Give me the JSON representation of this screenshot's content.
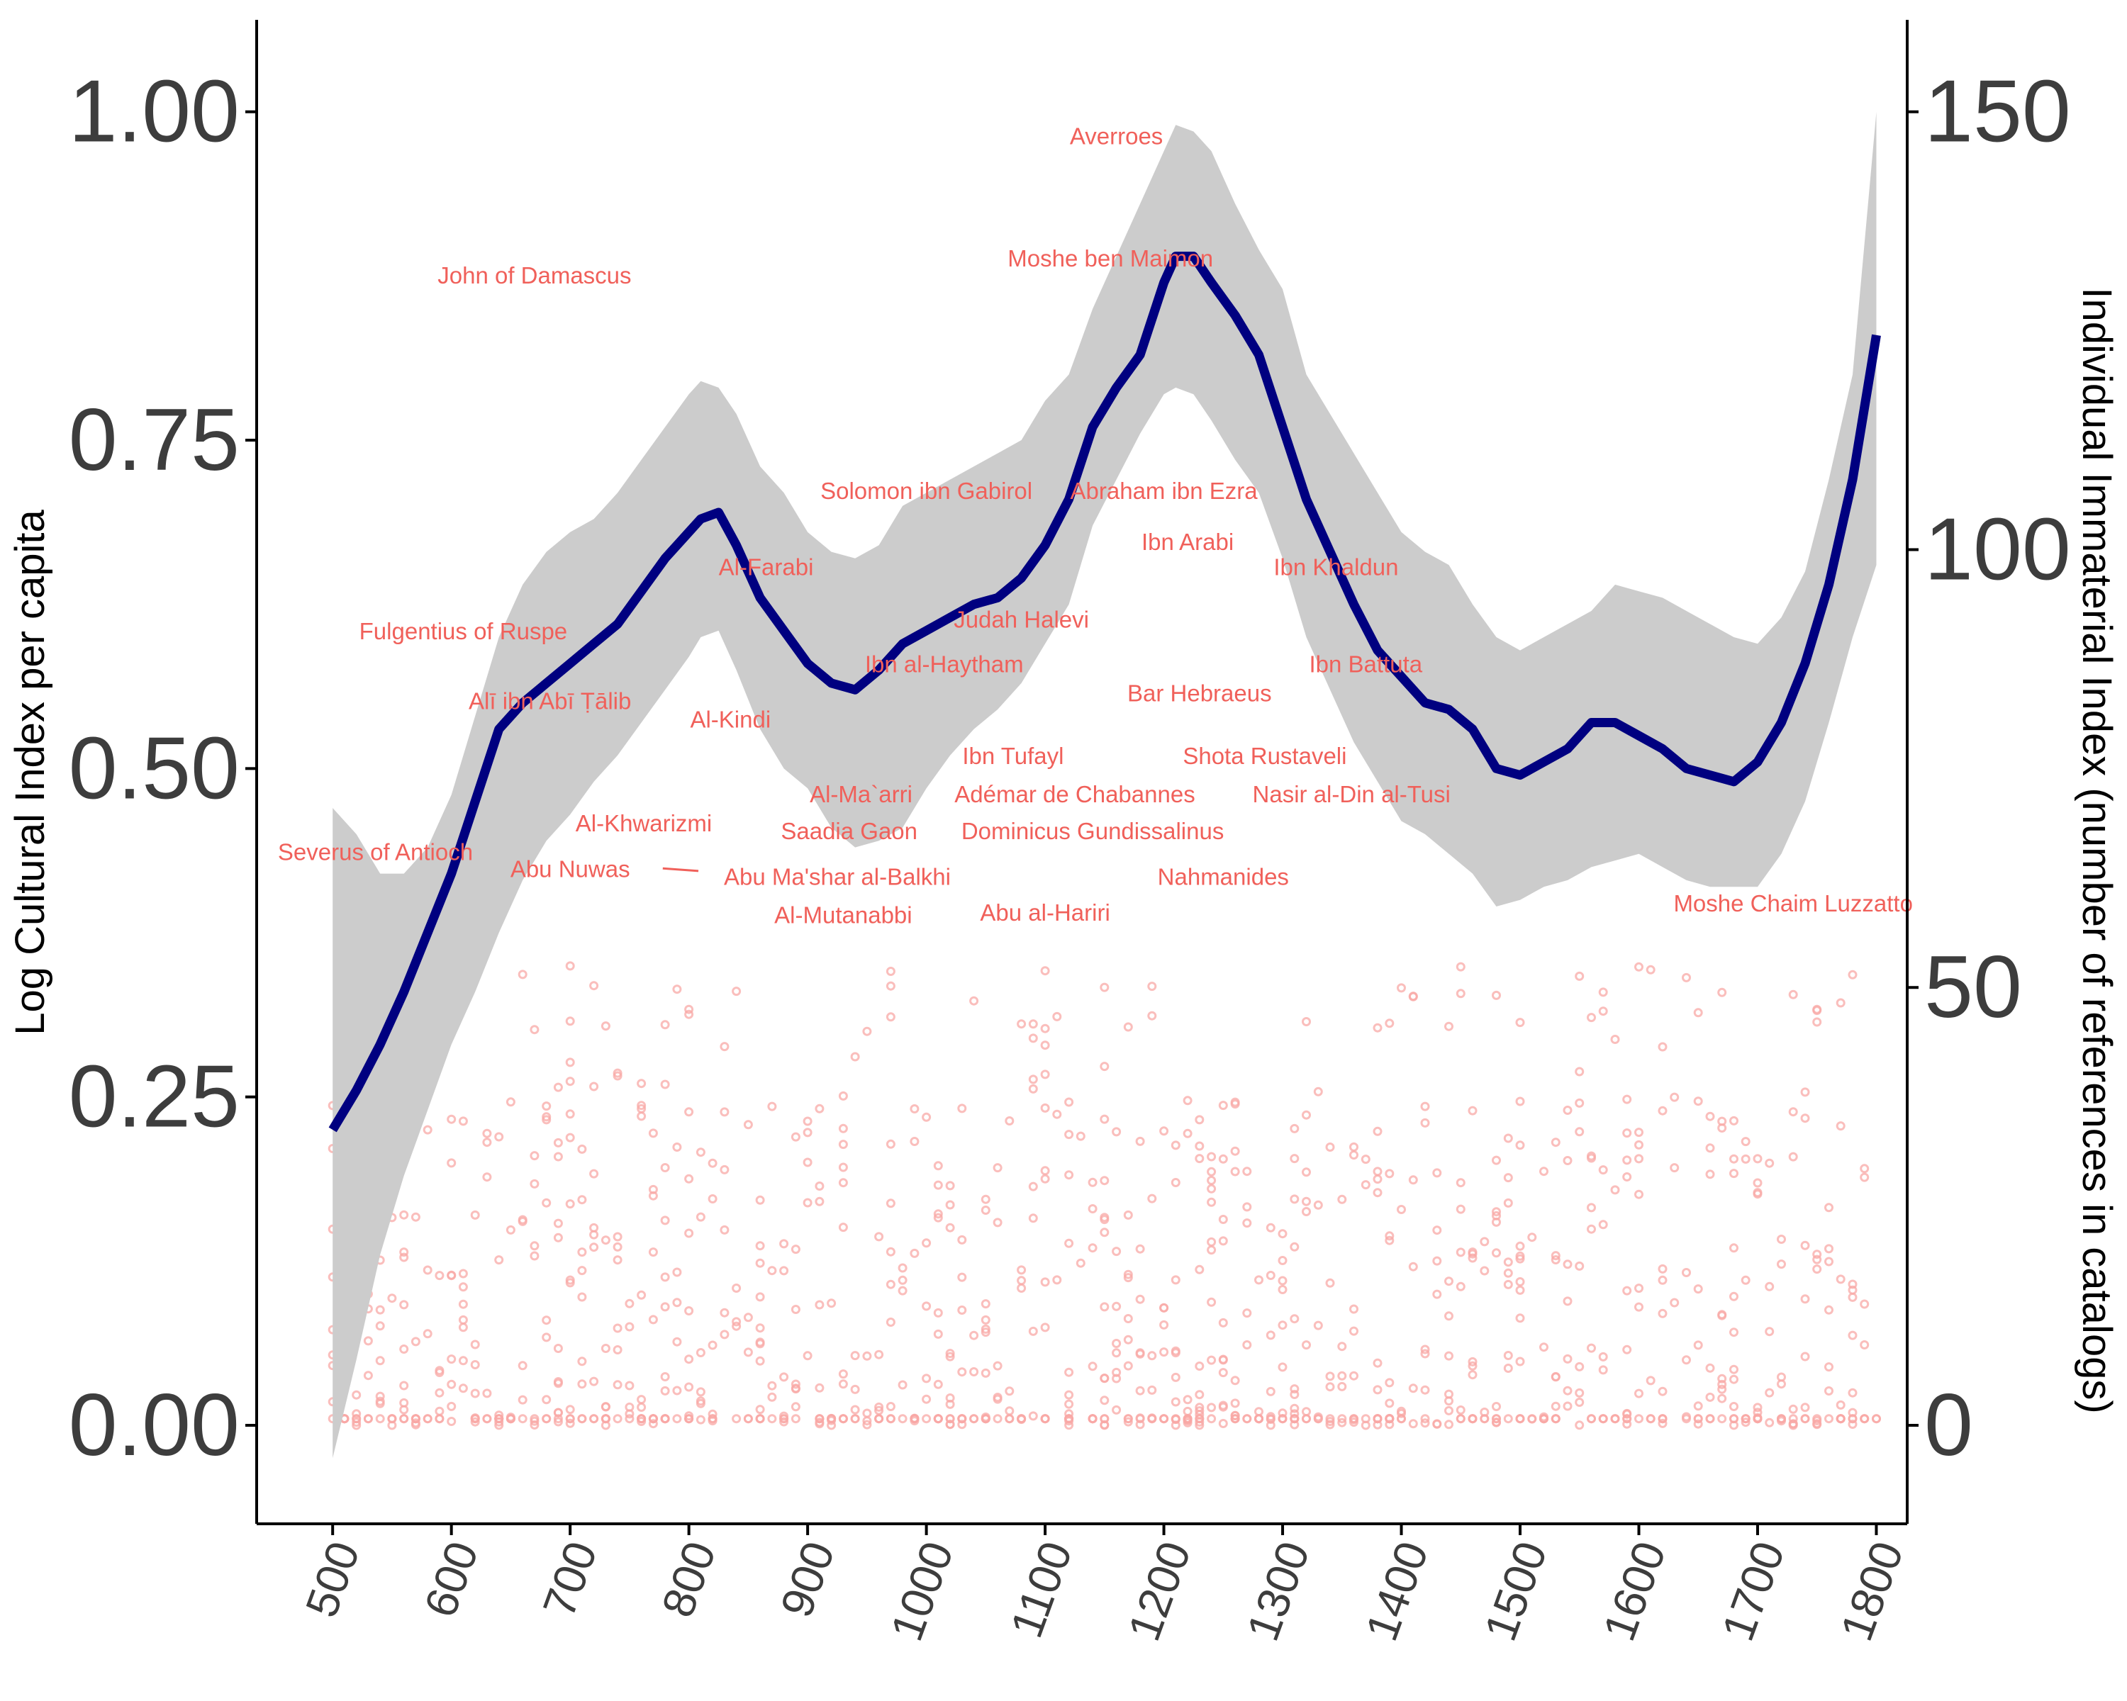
{
  "chart_data": {
    "type": "line",
    "ylabel_left": "Log Cultural Index per capita",
    "ylabel_right": "Individual Immaterial Index (number of references in catalogs)",
    "xlim": [
      436,
      1826
    ],
    "ylim_left": [
      -0.075,
      1.07
    ],
    "ylim_right": [
      -11.25,
      160.5
    ],
    "x_ticks": [
      "500",
      "600",
      "700",
      "800",
      "900",
      "1000",
      "1100",
      "1200",
      "1300",
      "1400",
      "1500",
      "1600",
      "1700",
      "1800"
    ],
    "y_ticks_left": [
      "0.00",
      "0.25",
      "0.50",
      "0.75",
      "1.00"
    ],
    "y_ticks_right": [
      "0",
      "50",
      "100",
      "150"
    ],
    "colors": {
      "line": "#000080",
      "band": "#cccccc",
      "points": "#f8a8a6",
      "labels": "#f0605a",
      "axis": "#000000"
    },
    "series": [
      {
        "x": [
          500,
          520,
          540,
          560,
          580,
          600,
          620,
          640,
          660,
          680,
          700,
          720,
          740,
          760,
          780,
          800,
          810,
          825,
          840,
          860,
          880,
          900,
          920,
          940,
          960,
          980,
          1000,
          1020,
          1040,
          1060,
          1080,
          1100,
          1120,
          1140,
          1160,
          1180,
          1200,
          1210,
          1225,
          1240,
          1260,
          1280,
          1300,
          1320,
          1340,
          1360,
          1380,
          1400,
          1420,
          1440,
          1460,
          1480,
          1500,
          1520,
          1540,
          1560,
          1580,
          1600,
          1620,
          1640,
          1660,
          1680,
          1700,
          1720,
          1740,
          1760,
          1780,
          1800
        ],
        "y": [
          0.225,
          0.255,
          0.29,
          0.33,
          0.375,
          0.42,
          0.475,
          0.53,
          0.55,
          0.565,
          0.58,
          0.595,
          0.61,
          0.635,
          0.66,
          0.68,
          0.69,
          0.695,
          0.67,
          0.63,
          0.605,
          0.58,
          0.565,
          0.56,
          0.575,
          0.595,
          0.605,
          0.615,
          0.625,
          0.63,
          0.645,
          0.67,
          0.705,
          0.76,
          0.79,
          0.815,
          0.87,
          0.89,
          0.89,
          0.87,
          0.845,
          0.815,
          0.76,
          0.705,
          0.665,
          0.625,
          0.59,
          0.57,
          0.55,
          0.545,
          0.53,
          0.5,
          0.495,
          0.505,
          0.515,
          0.535,
          0.535,
          0.525,
          0.515,
          0.5,
          0.495,
          0.49,
          0.505,
          0.535,
          0.58,
          0.64,
          0.72,
          0.83
        ],
        "lower": [
          -0.025,
          0.05,
          0.13,
          0.19,
          0.24,
          0.29,
          0.33,
          0.375,
          0.415,
          0.445,
          0.465,
          0.49,
          0.51,
          0.535,
          0.56,
          0.585,
          0.6,
          0.605,
          0.575,
          0.53,
          0.5,
          0.485,
          0.455,
          0.44,
          0.445,
          0.455,
          0.485,
          0.51,
          0.53,
          0.545,
          0.565,
          0.595,
          0.625,
          0.685,
          0.72,
          0.755,
          0.785,
          0.79,
          0.785,
          0.765,
          0.735,
          0.71,
          0.66,
          0.6,
          0.56,
          0.52,
          0.49,
          0.46,
          0.45,
          0.435,
          0.42,
          0.395,
          0.4,
          0.41,
          0.415,
          0.425,
          0.43,
          0.435,
          0.425,
          0.415,
          0.41,
          0.41,
          0.41,
          0.435,
          0.475,
          0.535,
          0.6,
          0.655
        ],
        "upper": [
          0.47,
          0.45,
          0.42,
          0.42,
          0.44,
          0.48,
          0.54,
          0.6,
          0.64,
          0.665,
          0.68,
          0.69,
          0.71,
          0.735,
          0.76,
          0.785,
          0.795,
          0.79,
          0.77,
          0.73,
          0.71,
          0.68,
          0.665,
          0.66,
          0.67,
          0.7,
          0.71,
          0.72,
          0.73,
          0.74,
          0.75,
          0.78,
          0.8,
          0.85,
          0.89,
          0.93,
          0.97,
          0.99,
          0.985,
          0.97,
          0.93,
          0.895,
          0.865,
          0.8,
          0.77,
          0.74,
          0.71,
          0.68,
          0.665,
          0.655,
          0.625,
          0.6,
          0.59,
          0.6,
          0.61,
          0.62,
          0.64,
          0.635,
          0.63,
          0.62,
          0.61,
          0.6,
          0.595,
          0.615,
          0.65,
          0.72,
          0.8,
          1.0
        ]
      }
    ],
    "annotations": [
      {
        "text": "Averroes",
        "x": 1160,
        "y": 0.98
      },
      {
        "text": "John of Damascus",
        "x": 670,
        "y": 0.874
      },
      {
        "text": "Moshe ben Maimon",
        "x": 1155,
        "y": 0.887
      },
      {
        "text": "Solomon ibn Gabirol",
        "x": 1000,
        "y": 0.71
      },
      {
        "text": "Abraham ibn Ezra",
        "x": 1200,
        "y": 0.71
      },
      {
        "text": "Ibn Arabi",
        "x": 1220,
        "y": 0.671
      },
      {
        "text": "Al-Farabi",
        "x": 865,
        "y": 0.652
      },
      {
        "text": "Ibn Khaldun",
        "x": 1345,
        "y": 0.652
      },
      {
        "text": "Fulgentius of Ruspe",
        "x": 610,
        "y": 0.603
      },
      {
        "text": "Judah Halevi",
        "x": 1080,
        "y": 0.612
      },
      {
        "text": "Ibn al-Haytham",
        "x": 1015,
        "y": 0.578
      },
      {
        "text": "Ibn Battuta",
        "x": 1370,
        "y": 0.578
      },
      {
        "text": "Bar Hebraeus",
        "x": 1230,
        "y": 0.556
      },
      {
        "text": "Alī ibn Abī Ṭālib",
        "x": 683,
        "y": 0.55
      },
      {
        "text": "Al-Kindi",
        "x": 835,
        "y": 0.536
      },
      {
        "text": "Ibn Tufayl",
        "x": 1073,
        "y": 0.508
      },
      {
        "text": "Shota Rustaveli",
        "x": 1285,
        "y": 0.508
      },
      {
        "text": "Al-Ma`arri",
        "x": 945,
        "y": 0.479
      },
      {
        "text": "Adémar de Chabannes",
        "x": 1125,
        "y": 0.479
      },
      {
        "text": "Nasir al-Din al-Tusi",
        "x": 1358,
        "y": 0.479
      },
      {
        "text": "Al-Khwarizmi",
        "x": 762,
        "y": 0.457
      },
      {
        "text": "Saadia Gaon",
        "x": 935,
        "y": 0.451
      },
      {
        "text": "Dominicus Gundissalinus",
        "x": 1140,
        "y": 0.451
      },
      {
        "text": "Severus of Antioch",
        "x": 536,
        "y": 0.435
      },
      {
        "text": "Abu Nuwas",
        "x": 700,
        "y": 0.422
      },
      {
        "text": "Abu Ma'shar al-Balkhi",
        "x": 925,
        "y": 0.416
      },
      {
        "text": "Nahmanides",
        "x": 1250,
        "y": 0.416
      },
      {
        "text": "Al-Mutanabbi",
        "x": 930,
        "y": 0.387
      },
      {
        "text": "Abu al-Hariri",
        "x": 1100,
        "y": 0.389
      },
      {
        "text": "Moshe Chaim Luzzatto",
        "x": 1730,
        "y": 0.396
      }
    ]
  }
}
